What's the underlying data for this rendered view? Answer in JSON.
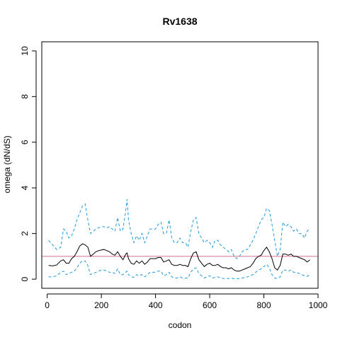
{
  "chart_data": {
    "type": "line",
    "title": "Rv1638",
    "xlabel": "codon",
    "ylabel": "omega (dN/dS)",
    "xlim": [
      -20,
      1000
    ],
    "ylim": [
      -0.4,
      10.4
    ],
    "x_ticks": [
      0,
      200,
      400,
      600,
      800,
      1000
    ],
    "y_ticks": [
      0,
      2,
      4,
      6,
      8,
      10
    ],
    "grid": false,
    "reference_line": {
      "y": 1,
      "color": "#d4708c"
    },
    "colors": {
      "estimate": "#000000",
      "bounds": "#1e9ae0"
    },
    "series": [
      {
        "role": "upper-bound",
        "style": "dashed",
        "x": [
          5,
          20,
          35,
          50,
          60,
          70,
          80,
          90,
          100,
          110,
          120,
          130,
          140,
          150,
          160,
          170,
          180,
          190,
          200,
          210,
          220,
          230,
          240,
          250,
          260,
          270,
          280,
          290,
          295,
          300,
          310,
          320,
          330,
          340,
          350,
          360,
          370,
          380,
          390,
          400,
          410,
          420,
          430,
          440,
          450,
          460,
          470,
          480,
          490,
          500,
          510,
          520,
          530,
          540,
          550,
          560,
          570,
          580,
          590,
          600,
          610,
          620,
          630,
          640,
          650,
          660,
          670,
          680,
          690,
          700,
          710,
          720,
          730,
          740,
          750,
          760,
          770,
          780,
          790,
          800,
          810,
          820,
          830,
          840,
          850,
          860,
          870,
          880,
          890,
          900,
          910,
          920,
          930,
          940,
          950,
          960,
          970
        ],
        "y": [
          1.7,
          1.5,
          1.3,
          1.4,
          2.2,
          2.1,
          1.8,
          1.9,
          2.2,
          2.6,
          2.9,
          3.2,
          3.3,
          2.6,
          2.0,
          2.1,
          2.2,
          2.25,
          2.3,
          2.3,
          2.25,
          2.3,
          2.2,
          2.1,
          2.7,
          2.1,
          2.2,
          3.0,
          3.5,
          2.6,
          2.0,
          1.6,
          1.9,
          1.7,
          2.0,
          1.6,
          1.9,
          2.2,
          2.2,
          2.2,
          2.4,
          2.5,
          2.0,
          2.0,
          2.6,
          1.8,
          1.6,
          1.6,
          1.8,
          1.6,
          1.6,
          1.4,
          2.1,
          2.6,
          2.7,
          2.0,
          1.8,
          1.6,
          1.7,
          1.6,
          1.4,
          1.7,
          1.7,
          1.5,
          1.4,
          1.3,
          1.2,
          1.3,
          1.0,
          0.9,
          1.0,
          1.2,
          1.3,
          1.3,
          1.5,
          1.7,
          2.0,
          2.3,
          2.6,
          2.7,
          3.1,
          3.0,
          2.4,
          1.7,
          1.0,
          1.3,
          2.5,
          2.3,
          2.4,
          2.3,
          2.1,
          2.2,
          2.0,
          2.0,
          1.8,
          2.1,
          2.2
        ]
      },
      {
        "role": "estimate",
        "style": "solid",
        "x": [
          5,
          20,
          35,
          50,
          60,
          70,
          80,
          90,
          100,
          110,
          120,
          130,
          140,
          150,
          160,
          170,
          180,
          190,
          200,
          210,
          220,
          230,
          240,
          250,
          260,
          270,
          280,
          290,
          295,
          300,
          310,
          320,
          330,
          340,
          350,
          360,
          370,
          380,
          390,
          400,
          410,
          420,
          430,
          440,
          450,
          460,
          470,
          480,
          490,
          500,
          510,
          520,
          530,
          540,
          550,
          560,
          570,
          580,
          590,
          600,
          610,
          620,
          630,
          640,
          650,
          660,
          670,
          680,
          690,
          700,
          710,
          720,
          730,
          740,
          750,
          760,
          770,
          780,
          790,
          800,
          810,
          820,
          830,
          840,
          850,
          860,
          870,
          880,
          890,
          900,
          910,
          920,
          930,
          940,
          950,
          960,
          970
        ],
        "y": [
          0.6,
          0.58,
          0.62,
          0.8,
          0.85,
          0.7,
          0.7,
          0.9,
          1.0,
          1.2,
          1.45,
          1.55,
          1.5,
          1.4,
          1.0,
          1.1,
          1.2,
          1.25,
          1.28,
          1.3,
          1.25,
          1.2,
          1.1,
          1.05,
          1.2,
          1.0,
          0.85,
          1.1,
          1.15,
          0.9,
          0.7,
          0.65,
          0.8,
          0.7,
          0.8,
          0.65,
          0.75,
          0.9,
          0.9,
          0.9,
          0.95,
          0.95,
          0.75,
          0.8,
          0.85,
          0.65,
          0.6,
          0.6,
          0.65,
          0.6,
          0.6,
          0.55,
          0.9,
          1.15,
          1.2,
          0.85,
          0.7,
          0.55,
          0.65,
          0.7,
          0.6,
          0.6,
          0.65,
          0.55,
          0.5,
          0.5,
          0.45,
          0.5,
          0.4,
          0.35,
          0.35,
          0.4,
          0.45,
          0.5,
          0.55,
          0.7,
          0.9,
          1.0,
          1.05,
          1.25,
          1.4,
          1.2,
          0.9,
          0.5,
          0.4,
          0.6,
          1.1,
          1.1,
          1.05,
          1.1,
          1.0,
          1.0,
          0.95,
          0.9,
          0.85,
          0.75,
          0.85
        ]
      },
      {
        "role": "lower-bound",
        "style": "dashed",
        "x": [
          5,
          20,
          35,
          50,
          60,
          70,
          80,
          90,
          100,
          110,
          120,
          130,
          140,
          150,
          160,
          170,
          180,
          190,
          200,
          210,
          220,
          230,
          240,
          250,
          260,
          270,
          280,
          290,
          295,
          300,
          310,
          320,
          330,
          340,
          350,
          360,
          370,
          380,
          390,
          400,
          410,
          420,
          430,
          440,
          450,
          460,
          470,
          480,
          490,
          500,
          510,
          520,
          530,
          540,
          550,
          560,
          570,
          580,
          590,
          600,
          610,
          620,
          630,
          640,
          650,
          660,
          670,
          680,
          690,
          700,
          710,
          720,
          730,
          740,
          750,
          760,
          770,
          780,
          790,
          800,
          810,
          820,
          830,
          840,
          850,
          860,
          870,
          880,
          890,
          900,
          910,
          920,
          930,
          940,
          950,
          960,
          970
        ],
        "y": [
          0.1,
          0.1,
          0.15,
          0.3,
          0.35,
          0.2,
          0.25,
          0.3,
          0.35,
          0.5,
          0.7,
          0.8,
          0.8,
          0.6,
          0.2,
          0.25,
          0.3,
          0.35,
          0.4,
          0.4,
          0.35,
          0.3,
          0.3,
          0.25,
          0.45,
          0.2,
          0.2,
          0.3,
          0.35,
          0.2,
          0.1,
          0.08,
          0.2,
          0.15,
          0.2,
          0.1,
          0.2,
          0.3,
          0.3,
          0.3,
          0.35,
          0.35,
          0.15,
          0.2,
          0.3,
          0.1,
          0.05,
          0.05,
          0.1,
          0.05,
          0.05,
          0.05,
          0.3,
          0.45,
          0.5,
          0.25,
          0.15,
          0.05,
          0.1,
          0.15,
          0.05,
          0.08,
          0.1,
          0.05,
          0.03,
          0.03,
          0.03,
          0.05,
          0.02,
          0.02,
          0.03,
          0.05,
          0.08,
          0.1,
          0.15,
          0.2,
          0.3,
          0.4,
          0.45,
          0.55,
          0.65,
          0.5,
          0.2,
          0.05,
          0.03,
          0.1,
          0.4,
          0.4,
          0.35,
          0.4,
          0.3,
          0.3,
          0.25,
          0.2,
          0.15,
          0.12,
          0.2
        ]
      }
    ]
  }
}
